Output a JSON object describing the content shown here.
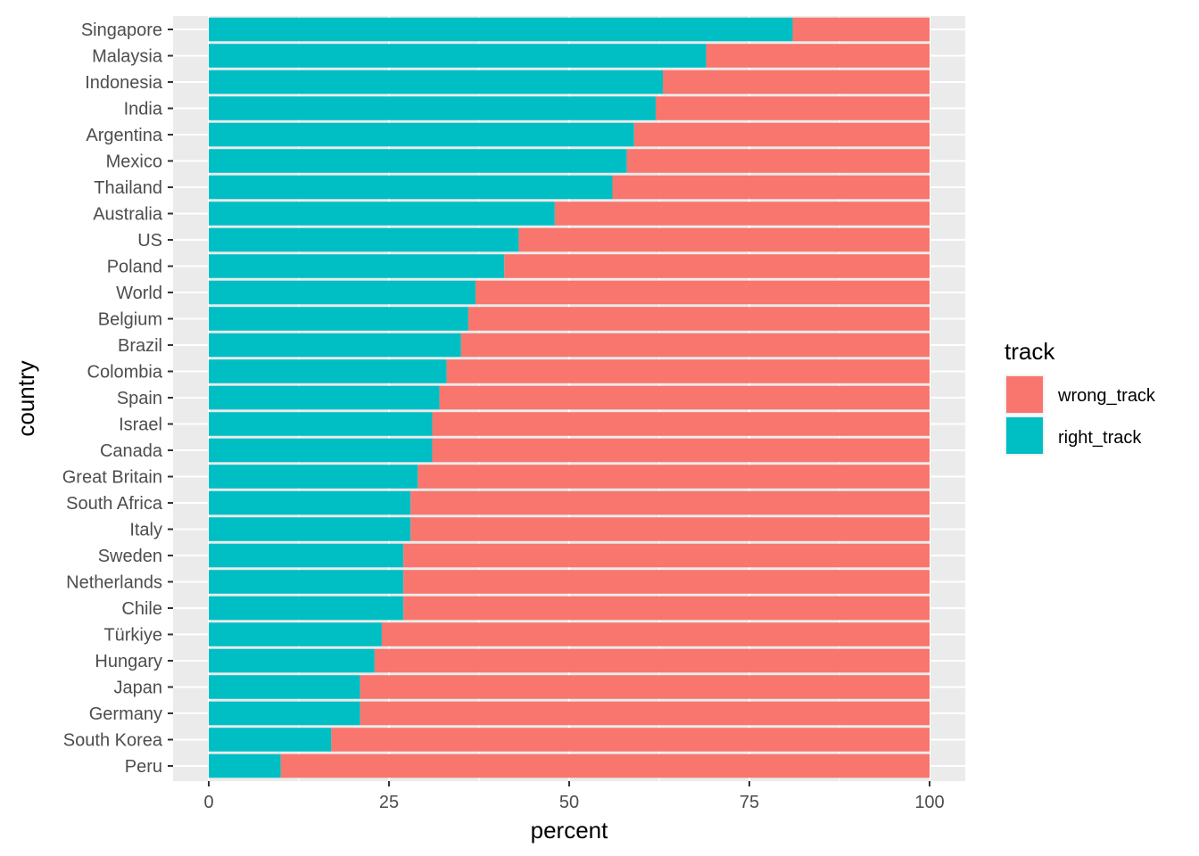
{
  "chart_data": {
    "type": "bar",
    "orientation": "horizontal",
    "stacked": true,
    "xlabel": "percent",
    "ylabel": "country",
    "xlim": [
      0,
      100
    ],
    "xticks": [
      "0",
      "25",
      "50",
      "75",
      "100"
    ],
    "grid": true,
    "legend_position": "right",
    "legend": {
      "title": "track",
      "items": [
        {
          "label": "wrong_track",
          "color": "#F8766D"
        },
        {
          "label": "right_track",
          "color": "#00BFC4"
        }
      ]
    },
    "categories": [
      "Singapore",
      "Malaysia",
      "Indonesia",
      "India",
      "Argentina",
      "Mexico",
      "Thailand",
      "Australia",
      "US",
      "Poland",
      "World",
      "Belgium",
      "Brazil",
      "Colombia",
      "Spain",
      "Israel",
      "Canada",
      "Great Britain",
      "South Africa",
      "Italy",
      "Sweden",
      "Netherlands",
      "Chile",
      "Türkiye",
      "Hungary",
      "Japan",
      "Germany",
      "South Korea",
      "Peru"
    ],
    "series": [
      {
        "name": "right_track",
        "color": "#00BFC4",
        "values": [
          81,
          69,
          63,
          62,
          59,
          58,
          56,
          48,
          43,
          41,
          37,
          36,
          35,
          33,
          32,
          31,
          31,
          29,
          28,
          28,
          27,
          27,
          27,
          24,
          23,
          21,
          21,
          17,
          10
        ]
      },
      {
        "name": "wrong_track",
        "color": "#F8766D",
        "values": [
          19,
          31,
          37,
          38,
          41,
          42,
          44,
          52,
          57,
          59,
          63,
          64,
          65,
          67,
          68,
          69,
          69,
          71,
          72,
          72,
          73,
          73,
          73,
          76,
          77,
          79,
          79,
          83,
          90
        ]
      }
    ]
  }
}
